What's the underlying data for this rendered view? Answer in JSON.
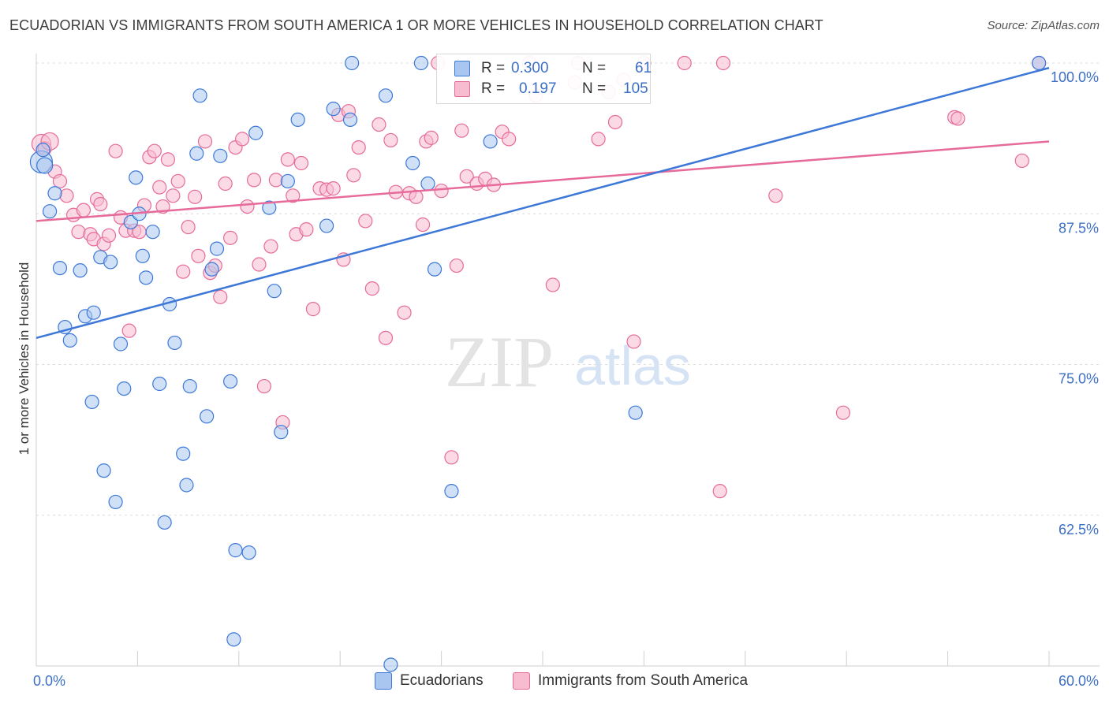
{
  "header": {
    "title": "ECUADORIAN VS IMMIGRANTS FROM SOUTH AMERICA 1 OR MORE VEHICLES IN HOUSEHOLD CORRELATION CHART",
    "source": "Source: ZipAtlas.com"
  },
  "legend": {
    "r_label": "R =",
    "n_label": "N =",
    "series1": {
      "r": "0.300",
      "n": "61"
    },
    "series2": {
      "r": "0.197",
      "n": "105"
    }
  },
  "bottom_legend": {
    "item1": "Ecuadorians",
    "item2": "Immigrants from South America"
  },
  "watermark": {
    "zip": "ZIP",
    "atlas": "atlas"
  },
  "chart_data": {
    "type": "scatter",
    "title": "ECUADORIAN VS IMMIGRANTS FROM SOUTH AMERICA 1 OR MORE VEHICLES IN HOUSEHOLD CORRELATION CHART",
    "xlabel": "",
    "ylabel": "1 or more Vehicles in Household",
    "xlim": [
      0,
      60
    ],
    "ylim": [
      50,
      100
    ],
    "x_ticks": [
      "0.0%",
      "60.0%"
    ],
    "y_ticks": [
      "100.0%",
      "87.5%",
      "75.0%",
      "62.5%"
    ],
    "y_tick_values": [
      100,
      87.5,
      75,
      62.5
    ],
    "grid": true,
    "colors": {
      "series1": "#3d78d8",
      "series2": "#e66b9a",
      "series1_fill": "#a9c6f0",
      "series2_fill": "#f7bcd0",
      "tick_label": "#3d6fc4"
    },
    "series": [
      {
        "name": "Ecuadorians",
        "r": 0.3,
        "n": 61,
        "trend": {
          "x": [
            0,
            60
          ],
          "y": [
            77.2,
            99.6
          ]
        },
        "points": [
          [
            0.3,
            91.8
          ],
          [
            0.4,
            92.8
          ],
          [
            0.5,
            91.5
          ],
          [
            0.8,
            87.7
          ],
          [
            1.1,
            89.2
          ],
          [
            1.4,
            83.0
          ],
          [
            1.7,
            78.1
          ],
          [
            2.0,
            77.0
          ],
          [
            2.6,
            82.8
          ],
          [
            2.9,
            79.0
          ],
          [
            3.4,
            79.3
          ],
          [
            3.3,
            71.9
          ],
          [
            3.8,
            83.9
          ],
          [
            4.0,
            66.2
          ],
          [
            4.4,
            83.5
          ],
          [
            4.7,
            63.6
          ],
          [
            5.0,
            76.7
          ],
          [
            5.2,
            73.0
          ],
          [
            5.6,
            86.8
          ],
          [
            5.9,
            90.5
          ],
          [
            6.1,
            87.5
          ],
          [
            6.3,
            84.0
          ],
          [
            6.5,
            82.2
          ],
          [
            6.9,
            86.0
          ],
          [
            7.3,
            73.4
          ],
          [
            7.6,
            61.9
          ],
          [
            7.9,
            80.0
          ],
          [
            8.2,
            76.8
          ],
          [
            8.7,
            67.6
          ],
          [
            8.9,
            65.0
          ],
          [
            9.1,
            73.2
          ],
          [
            9.5,
            92.5
          ],
          [
            9.7,
            97.3
          ],
          [
            10.1,
            70.7
          ],
          [
            10.4,
            82.9
          ],
          [
            10.7,
            84.6
          ],
          [
            10.9,
            92.3
          ],
          [
            11.5,
            73.6
          ],
          [
            11.7,
            52.2
          ],
          [
            11.8,
            59.6
          ],
          [
            12.6,
            59.4
          ],
          [
            13.0,
            94.2
          ],
          [
            13.8,
            88.0
          ],
          [
            14.1,
            81.1
          ],
          [
            14.5,
            69.4
          ],
          [
            14.9,
            90.2
          ],
          [
            15.5,
            95.3
          ],
          [
            17.2,
            86.5
          ],
          [
            17.6,
            96.2
          ],
          [
            18.6,
            95.3
          ],
          [
            18.7,
            100.0
          ],
          [
            20.7,
            97.3
          ],
          [
            21.0,
            50.1
          ],
          [
            22.3,
            91.7
          ],
          [
            22.8,
            100.0
          ],
          [
            23.2,
            90.0
          ],
          [
            23.6,
            82.9
          ],
          [
            24.6,
            64.5
          ],
          [
            26.9,
            93.5
          ],
          [
            35.5,
            71.0
          ],
          [
            59.4,
            100.0
          ]
        ]
      },
      {
        "name": "Immigrants from South America",
        "r": 0.197,
        "n": 105,
        "trend": {
          "x": [
            0,
            60
          ],
          "y": [
            86.9,
            93.5
          ]
        },
        "points": [
          [
            0.3,
            93.3
          ],
          [
            0.5,
            92.9
          ],
          [
            0.8,
            93.5
          ],
          [
            1.1,
            91.0
          ],
          [
            1.4,
            90.2
          ],
          [
            1.8,
            89.0
          ],
          [
            2.2,
            87.4
          ],
          [
            2.5,
            86.0
          ],
          [
            2.8,
            87.8
          ],
          [
            3.2,
            85.8
          ],
          [
            3.4,
            85.4
          ],
          [
            3.6,
            88.7
          ],
          [
            3.8,
            88.3
          ],
          [
            4.0,
            85.0
          ],
          [
            4.3,
            85.7
          ],
          [
            4.7,
            92.7
          ],
          [
            5.0,
            87.2
          ],
          [
            5.3,
            86.1
          ],
          [
            5.5,
            77.8
          ],
          [
            5.8,
            86.1
          ],
          [
            6.1,
            86.0
          ],
          [
            6.4,
            88.2
          ],
          [
            6.7,
            92.2
          ],
          [
            7.0,
            92.7
          ],
          [
            7.3,
            89.7
          ],
          [
            7.5,
            88.1
          ],
          [
            7.8,
            92.0
          ],
          [
            8.1,
            89.0
          ],
          [
            8.4,
            90.2
          ],
          [
            8.7,
            82.7
          ],
          [
            9.0,
            86.4
          ],
          [
            9.4,
            88.9
          ],
          [
            9.6,
            84.0
          ],
          [
            10.0,
            93.5
          ],
          [
            10.3,
            82.6
          ],
          [
            10.6,
            83.2
          ],
          [
            10.9,
            80.6
          ],
          [
            11.2,
            90.0
          ],
          [
            11.5,
            85.5
          ],
          [
            11.8,
            93.0
          ],
          [
            12.2,
            93.7
          ],
          [
            12.5,
            88.1
          ],
          [
            12.9,
            90.3
          ],
          [
            13.2,
            83.3
          ],
          [
            13.5,
            73.2
          ],
          [
            13.9,
            84.8
          ],
          [
            14.2,
            90.3
          ],
          [
            14.6,
            70.2
          ],
          [
            14.9,
            92.0
          ],
          [
            15.2,
            89.0
          ],
          [
            15.4,
            85.8
          ],
          [
            15.7,
            91.7
          ],
          [
            16.0,
            86.2
          ],
          [
            16.4,
            79.6
          ],
          [
            16.8,
            89.6
          ],
          [
            17.2,
            89.5
          ],
          [
            17.6,
            89.6
          ],
          [
            17.9,
            95.7
          ],
          [
            18.2,
            83.7
          ],
          [
            18.5,
            96.0
          ],
          [
            18.8,
            90.7
          ],
          [
            19.1,
            93.0
          ],
          [
            19.5,
            86.9
          ],
          [
            19.9,
            81.3
          ],
          [
            20.3,
            94.9
          ],
          [
            20.7,
            77.2
          ],
          [
            21.0,
            93.6
          ],
          [
            21.3,
            89.3
          ],
          [
            21.8,
            79.3
          ],
          [
            22.1,
            89.2
          ],
          [
            22.5,
            88.9
          ],
          [
            22.9,
            86.6
          ],
          [
            23.1,
            93.5
          ],
          [
            23.4,
            93.8
          ],
          [
            23.8,
            100.0
          ],
          [
            24.0,
            89.4
          ],
          [
            24.6,
            67.3
          ],
          [
            24.9,
            83.2
          ],
          [
            25.2,
            94.4
          ],
          [
            25.5,
            90.6
          ],
          [
            26.1,
            90.0
          ],
          [
            26.6,
            90.4
          ],
          [
            27.1,
            89.9
          ],
          [
            27.6,
            94.3
          ],
          [
            28.0,
            93.7
          ],
          [
            29.2,
            100.0
          ],
          [
            29.6,
            97.3
          ],
          [
            30.6,
            81.6
          ],
          [
            31.9,
            98.4
          ],
          [
            32.1,
            100.0
          ],
          [
            33.3,
            93.7
          ],
          [
            33.9,
            97.6
          ],
          [
            34.3,
            95.1
          ],
          [
            34.8,
            98.6
          ],
          [
            35.4,
            76.9
          ],
          [
            36.0,
            100.0
          ],
          [
            38.4,
            100.0
          ],
          [
            40.5,
            64.5
          ],
          [
            40.7,
            100.0
          ],
          [
            43.8,
            89.0
          ],
          [
            47.8,
            71.0
          ],
          [
            54.4,
            95.5
          ],
          [
            54.6,
            95.4
          ],
          [
            59.4,
            100.0
          ],
          [
            58.4,
            91.9
          ]
        ]
      }
    ]
  }
}
